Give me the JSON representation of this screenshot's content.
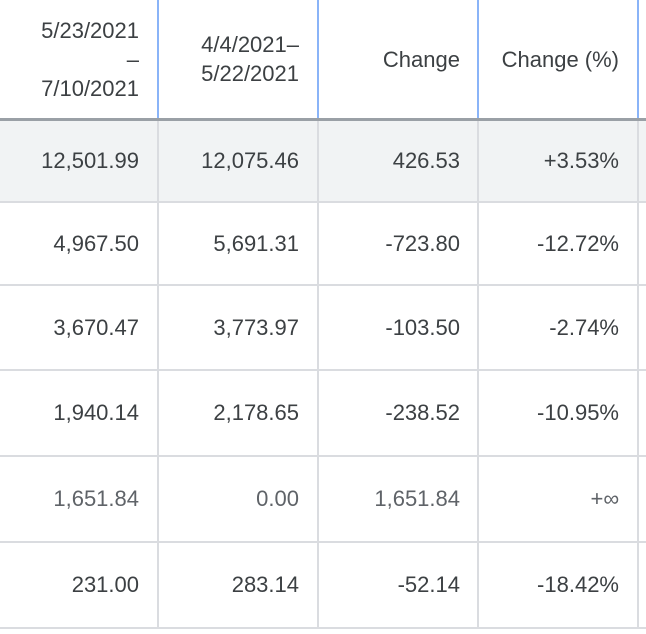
{
  "table": {
    "headers": [
      "5/23/2021\n–\n7/10/2021",
      "4/4/2021–\n5/22/2021",
      "Change",
      "Change (%)"
    ],
    "rows": [
      {
        "current": "12,501.99",
        "previous": "12,075.46",
        "change": "426.53",
        "change_pct": "+3.53%"
      },
      {
        "current": "4,967.50",
        "previous": "5,691.31",
        "change": "-723.80",
        "change_pct": "-12.72%"
      },
      {
        "current": "3,670.47",
        "previous": "3,773.97",
        "change": "-103.50",
        "change_pct": "-2.74%"
      },
      {
        "current": "1,940.14",
        "previous": "2,178.65",
        "change": "-238.52",
        "change_pct": "-10.95%"
      },
      {
        "current": "1,651.84",
        "previous": "0.00",
        "change": "1,651.84",
        "change_pct": "+∞"
      },
      {
        "current": "231.00",
        "previous": "283.14",
        "change": "-52.14",
        "change_pct": "-18.42%"
      }
    ]
  }
}
